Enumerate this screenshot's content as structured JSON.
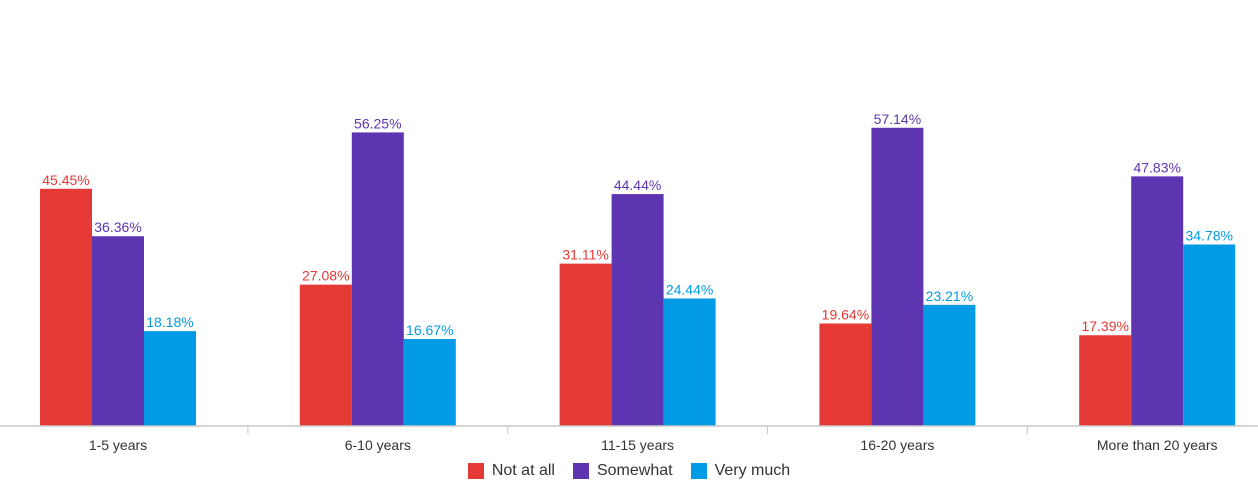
{
  "chart_data": {
    "type": "bar",
    "categories": [
      "1-5 years",
      "6-10 years",
      "11-15 years",
      "16-20 years",
      "More than 20 years"
    ],
    "series": [
      {
        "name": "Not at all",
        "color": "#E53935",
        "values": [
          45.45,
          27.08,
          31.11,
          19.64,
          17.39
        ],
        "labels": [
          "45.45%",
          "27.08%",
          "31.11%",
          "19.64%",
          "17.39%"
        ]
      },
      {
        "name": "Somewhat",
        "color": "#5E35B1",
        "values": [
          36.36,
          56.25,
          44.44,
          57.14,
          47.83
        ],
        "labels": [
          "36.36%",
          "56.25%",
          "44.44%",
          "57.14%",
          "47.83%"
        ]
      },
      {
        "name": "Very much",
        "color": "#039BE5",
        "values": [
          18.18,
          16.67,
          24.44,
          23.21,
          34.78
        ],
        "labels": [
          "18.18%",
          "16.67%",
          "24.44%",
          "23.21%",
          "34.78%"
        ]
      }
    ],
    "ylim": [
      0,
      73
    ],
    "grid": false,
    "legend_position": "bottom"
  }
}
